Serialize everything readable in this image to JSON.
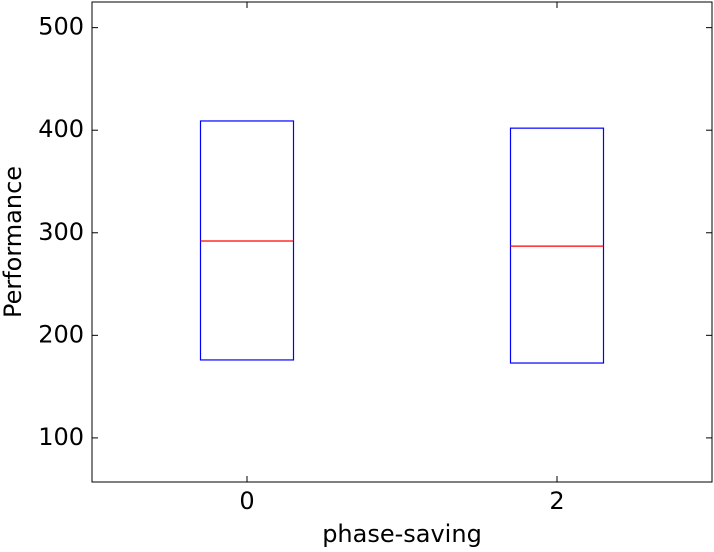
{
  "chart_data": {
    "type": "box",
    "x_label": "phase-saving",
    "y_label": "Performance",
    "categories": [
      "0",
      "2"
    ],
    "q1": [
      176,
      173
    ],
    "median": [
      292,
      287
    ],
    "q3": [
      409,
      402
    ],
    "box_color": "#0000ff",
    "median_color": "#ff0000",
    "ylim": [
      57,
      525
    ],
    "yticks": [
      100,
      200,
      300,
      400,
      500
    ]
  }
}
